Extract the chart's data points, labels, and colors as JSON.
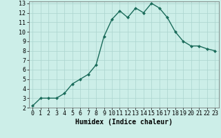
{
  "x": [
    0,
    1,
    2,
    3,
    4,
    5,
    6,
    7,
    8,
    9,
    10,
    11,
    12,
    13,
    14,
    15,
    16,
    17,
    18,
    19,
    20,
    21,
    22,
    23
  ],
  "y": [
    2.2,
    3.0,
    3.0,
    3.0,
    3.5,
    4.5,
    5.0,
    5.5,
    6.5,
    9.5,
    11.3,
    12.2,
    11.5,
    12.5,
    12.0,
    13.0,
    12.5,
    11.5,
    10.0,
    9.0,
    8.5,
    8.5,
    8.2,
    8.0
  ],
  "xlabel": "Humidex (Indice chaleur)",
  "xlim": [
    -0.5,
    23.5
  ],
  "ylim": [
    2,
    13.2
  ],
  "yticks": [
    2,
    3,
    4,
    5,
    6,
    7,
    8,
    9,
    10,
    11,
    12,
    13
  ],
  "xticks": [
    0,
    1,
    2,
    3,
    4,
    5,
    6,
    7,
    8,
    9,
    10,
    11,
    12,
    13,
    14,
    15,
    16,
    17,
    18,
    19,
    20,
    21,
    22,
    23
  ],
  "line_color": "#1a6b5a",
  "marker_color": "#1a6b5a",
  "bg_color": "#cceee8",
  "grid_color": "#aad4ce",
  "xlabel_fontsize": 7,
  "tick_fontsize": 6,
  "line_width": 1.0,
  "marker_size": 2.5
}
